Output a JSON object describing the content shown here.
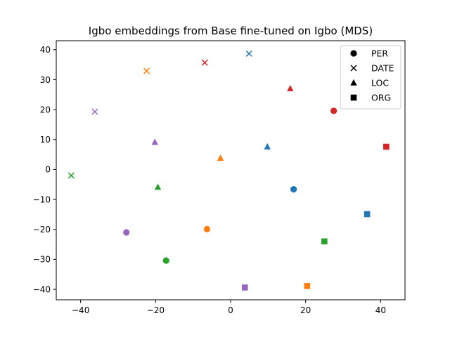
{
  "chart_data": {
    "type": "scatter",
    "title": "Igbo embeddings from Base fine-tuned on Igbo (MDS)",
    "xlabel": "",
    "ylabel": "",
    "xlim": [
      -46.5,
      46.5
    ],
    "ylim": [
      -43.5,
      43.0
    ],
    "xticks": [
      -40,
      -20,
      0,
      20,
      40
    ],
    "yticks": [
      -40,
      -30,
      -20,
      -10,
      0,
      10,
      20,
      30,
      40
    ],
    "grid": false,
    "legend_position": "top-right",
    "legend": [
      {
        "label": "PER",
        "marker": "circle"
      },
      {
        "label": "DATE",
        "marker": "x"
      },
      {
        "label": "LOC",
        "marker": "triangle"
      },
      {
        "label": "ORG",
        "marker": "square"
      }
    ],
    "colors": {
      "blue": "#1f77b4",
      "orange": "#ff7f0e",
      "green": "#2ca02c",
      "red": "#d62728",
      "purple": "#9467bd"
    },
    "points": [
      {
        "x": 16.8,
        "y": -6.6,
        "marker": "circle",
        "color": "blue"
      },
      {
        "x": 4.9,
        "y": 38.7,
        "marker": "x",
        "color": "blue"
      },
      {
        "x": 9.8,
        "y": 7.6,
        "marker": "triangle",
        "color": "blue"
      },
      {
        "x": 36.4,
        "y": -14.9,
        "marker": "square",
        "color": "blue"
      },
      {
        "x": -6.3,
        "y": -19.9,
        "marker": "circle",
        "color": "orange"
      },
      {
        "x": -22.4,
        "y": 32.9,
        "marker": "x",
        "color": "orange"
      },
      {
        "x": -2.7,
        "y": 3.8,
        "marker": "triangle",
        "color": "orange"
      },
      {
        "x": 20.4,
        "y": -38.9,
        "marker": "square",
        "color": "orange"
      },
      {
        "x": -17.2,
        "y": -30.4,
        "marker": "circle",
        "color": "green"
      },
      {
        "x": -42.5,
        "y": -2.0,
        "marker": "x",
        "color": "green"
      },
      {
        "x": -19.4,
        "y": -5.9,
        "marker": "triangle",
        "color": "green"
      },
      {
        "x": 25.0,
        "y": -24.0,
        "marker": "square",
        "color": "green"
      },
      {
        "x": 27.5,
        "y": 19.6,
        "marker": "circle",
        "color": "red"
      },
      {
        "x": -6.9,
        "y": 35.7,
        "marker": "x",
        "color": "red"
      },
      {
        "x": 15.9,
        "y": 27.0,
        "marker": "triangle",
        "color": "red"
      },
      {
        "x": 41.5,
        "y": 7.6,
        "marker": "square",
        "color": "red"
      },
      {
        "x": -27.8,
        "y": -21.0,
        "marker": "circle",
        "color": "purple"
      },
      {
        "x": -36.2,
        "y": 19.3,
        "marker": "x",
        "color": "purple"
      },
      {
        "x": -20.2,
        "y": 9.1,
        "marker": "triangle",
        "color": "purple"
      },
      {
        "x": 3.8,
        "y": -39.4,
        "marker": "square",
        "color": "purple"
      }
    ]
  }
}
